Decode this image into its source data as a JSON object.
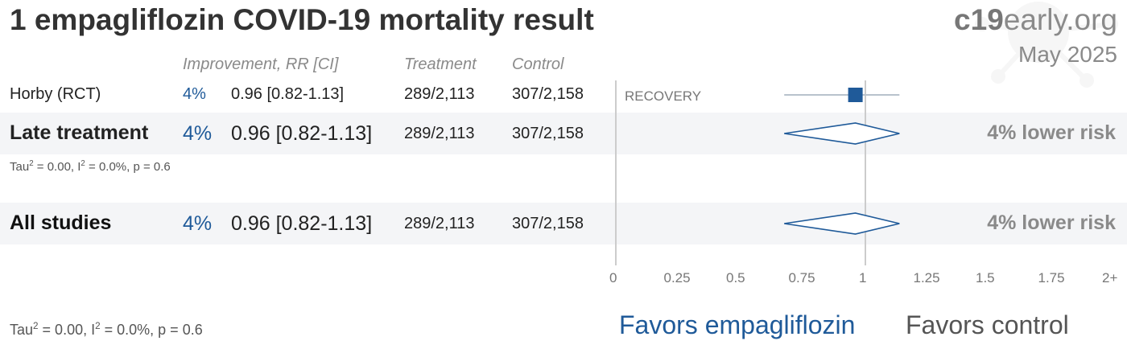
{
  "title": "1 empagliflozin COVID-19 mortality result",
  "brand": {
    "bold": "c19",
    "rest": "early.org"
  },
  "date": "May 2025",
  "headers": {
    "improvement": "Improvement, RR [CI]",
    "treatment": "Treatment",
    "control": "Control"
  },
  "study": {
    "name": "Horby (RCT)",
    "improvement": "4%",
    "rr_ci": "0.96 [0.82-1.13]",
    "treatment": "289/2,113",
    "control": "307/2,158",
    "trial": "RECOVERY"
  },
  "late": {
    "name": "Late treatment",
    "improvement": "4%",
    "rr_ci": "0.96 [0.82-1.13]",
    "treatment": "289/2,113",
    "control": "307/2,158",
    "risk": "4% lower risk",
    "stats_tau": "Tau",
    "stats_rest": " = 0.00, I",
    "stats_end": " = 0.0%, p = 0.6"
  },
  "all": {
    "name": "All studies",
    "improvement": "4%",
    "rr_ci": "0.96 [0.82-1.13]",
    "treatment": "289/2,113",
    "control": "307/2,158",
    "risk": "4% lower risk",
    "stats_tau": "Tau",
    "stats_rest": " = 0.00, I",
    "stats_end": " = 0.0%, p = 0.6"
  },
  "sup2": "2",
  "axis_ticks": [
    "0",
    "0.25",
    "0.5",
    "0.75",
    "1",
    "1.25",
    "1.5",
    "1.75",
    "2+"
  ],
  "favors": {
    "left": "Favors empagliflozin",
    "right": "Favors control"
  },
  "colors": {
    "accent": "#1f5a99",
    "band": "#f4f5f7",
    "muted": "#8a8a8a"
  },
  "chart_data": {
    "type": "forest",
    "title": "1 empagliflozin COVID-19 mortality result",
    "xlim": [
      0,
      2
    ],
    "reference_line": 1,
    "rows": [
      {
        "label": "Horby (RCT)",
        "kind": "study",
        "rr": 0.96,
        "ci": [
          0.82,
          1.13
        ]
      },
      {
        "label": "Late treatment",
        "kind": "pooled",
        "rr": 0.96,
        "ci": [
          0.82,
          1.13
        ]
      },
      {
        "label": "All studies",
        "kind": "pooled",
        "rr": 0.96,
        "ci": [
          0.82,
          1.13
        ]
      }
    ]
  }
}
